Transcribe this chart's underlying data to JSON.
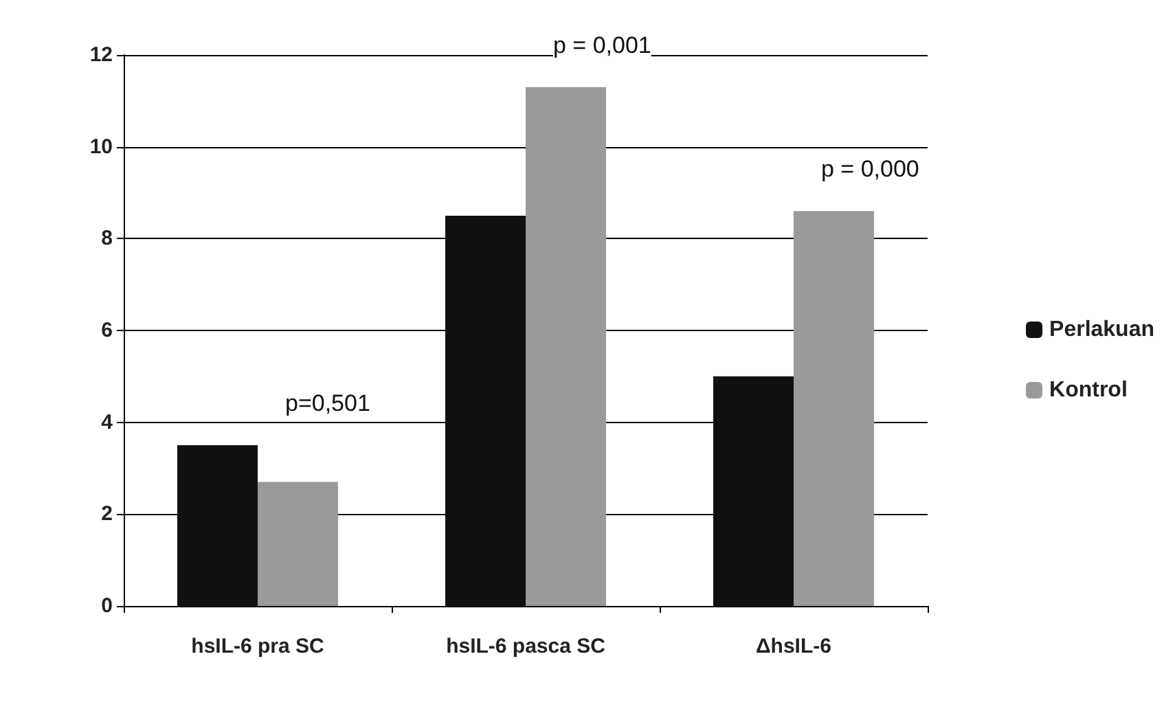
{
  "chart_data": {
    "type": "bar",
    "categories": [
      "hsIL-6 pra SC",
      "hsIL-6 pasca SC",
      "ΔhsIL-6"
    ],
    "series": [
      {
        "name": "Perlakuan",
        "color": "#111111",
        "values": [
          3.5,
          8.5,
          5.0
        ]
      },
      {
        "name": "Kontrol",
        "color": "#9a9a9a",
        "values": [
          2.7,
          11.3,
          8.6
        ]
      }
    ],
    "ylim": [
      0,
      12
    ],
    "yticks": [
      0,
      2,
      4,
      6,
      8,
      10,
      12
    ],
    "grid": "y",
    "legend": "right",
    "annotations": [
      {
        "text": "p=0,501",
        "x": "hsIL-6 pra SC",
        "y": 3.5
      },
      {
        "text": "p = 0,001",
        "x": "hsIL-6 pasca SC",
        "y": 11.3
      },
      {
        "text": "p = 0,000",
        "x": "ΔhsIL-6",
        "y": 8.6
      }
    ]
  }
}
